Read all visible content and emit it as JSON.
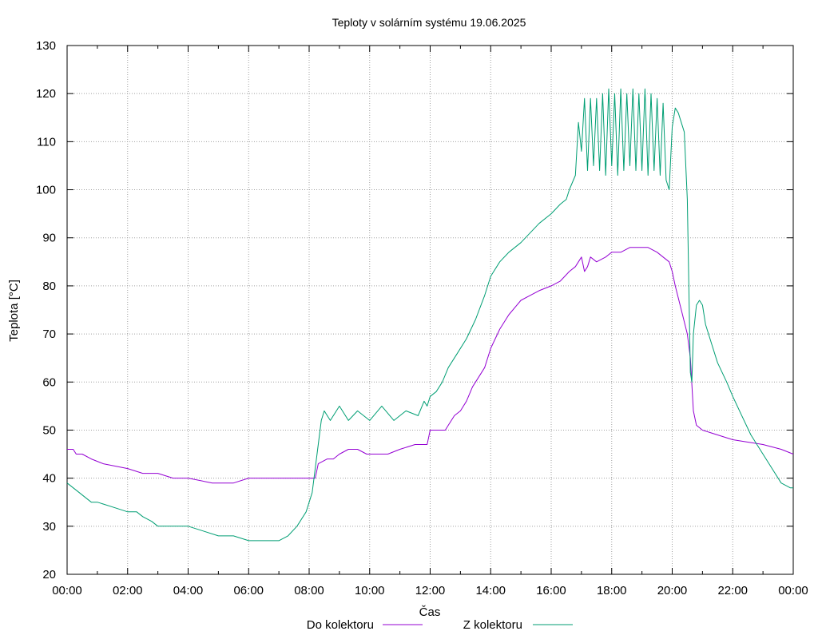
{
  "chart_data": {
    "type": "line",
    "title": "Teploty v solárním systému 19.06.2025",
    "xlabel": "Čas",
    "ylabel": "Teplota [°C]",
    "ylim": [
      20,
      130
    ],
    "xlim_hours": [
      0,
      24
    ],
    "grid": true,
    "legend_position": "bottom",
    "x_ticks": [
      "00:00",
      "02:00",
      "04:00",
      "06:00",
      "08:00",
      "10:00",
      "12:00",
      "14:00",
      "16:00",
      "18:00",
      "20:00",
      "22:00",
      "00:00"
    ],
    "y_ticks": [
      20,
      30,
      40,
      50,
      60,
      70,
      80,
      90,
      100,
      110,
      120,
      130
    ],
    "series": [
      {
        "name": "Do kolektoru",
        "color": "#9400d3",
        "x": [
          0,
          0.2,
          0.3,
          0.5,
          0.8,
          1.2,
          2.0,
          2.5,
          3.0,
          3.5,
          4.0,
          4.8,
          5.0,
          5.5,
          6.0,
          7.0,
          8.0,
          8.2,
          8.3,
          8.6,
          8.8,
          9.0,
          9.3,
          9.6,
          9.9,
          10.2,
          10.6,
          11.0,
          11.5,
          11.9,
          12.0,
          12.4,
          12.5,
          12.6,
          12.8,
          13.0,
          13.2,
          13.4,
          13.6,
          13.8,
          14.0,
          14.3,
          14.6,
          15.0,
          15.3,
          15.6,
          16.0,
          16.3,
          16.6,
          16.8,
          16.9,
          17.0,
          17.1,
          17.2,
          17.3,
          17.5,
          17.8,
          18.0,
          18.3,
          18.6,
          18.9,
          19.2,
          19.5,
          19.7,
          19.9,
          20.0,
          20.1,
          20.3,
          20.5,
          20.6,
          20.7,
          20.8,
          21.0,
          21.5,
          22.0,
          23.0,
          23.6,
          24.0
        ],
        "values": [
          46,
          46,
          45,
          45,
          44,
          43,
          42,
          41,
          41,
          40,
          40,
          39,
          39,
          39,
          40,
          40,
          40,
          40,
          43,
          44,
          44,
          45,
          46,
          46,
          45,
          45,
          45,
          46,
          47,
          47,
          50,
          50,
          50,
          51,
          53,
          54,
          56,
          59,
          61,
          63,
          67,
          71,
          74,
          77,
          78,
          79,
          80,
          81,
          83,
          84,
          85,
          86,
          83,
          84,
          86,
          85,
          86,
          87,
          87,
          88,
          88,
          88,
          87,
          86,
          85,
          83,
          80,
          75,
          70,
          65,
          54,
          51,
          50,
          49,
          48,
          47,
          46,
          45
        ]
      },
      {
        "name": "Z kolektoru",
        "color": "#009e73",
        "x": [
          0,
          0.2,
          0.4,
          0.6,
          0.8,
          1.0,
          1.5,
          2.0,
          2.3,
          2.5,
          2.8,
          3.0,
          3.5,
          4.0,
          4.5,
          5.0,
          5.5,
          6.0,
          6.2,
          6.5,
          7.0,
          7.3,
          7.6,
          7.9,
          8.1,
          8.2,
          8.3,
          8.4,
          8.5,
          8.7,
          9.0,
          9.3,
          9.6,
          10.0,
          10.4,
          10.8,
          11.2,
          11.6,
          11.8,
          11.9,
          12.0,
          12.2,
          12.4,
          12.6,
          12.9,
          13.2,
          13.5,
          13.8,
          14.0,
          14.3,
          14.6,
          15.0,
          15.3,
          15.6,
          16.0,
          16.3,
          16.5,
          16.6,
          16.8,
          16.9,
          17.0,
          17.1,
          17.2,
          17.3,
          17.4,
          17.5,
          17.6,
          17.7,
          17.8,
          17.9,
          18.0,
          18.1,
          18.2,
          18.3,
          18.4,
          18.5,
          18.6,
          18.7,
          18.8,
          18.9,
          19.0,
          19.1,
          19.2,
          19.3,
          19.4,
          19.5,
          19.6,
          19.7,
          19.8,
          19.9,
          20.0,
          20.1,
          20.2,
          20.4,
          20.5,
          20.55,
          20.6,
          20.65,
          20.7,
          20.8,
          20.9,
          21.0,
          21.1,
          21.3,
          21.5,
          21.8,
          22.0,
          22.3,
          22.6,
          23.0,
          23.3,
          23.6,
          23.9,
          24.0
        ],
        "values": [
          39,
          38,
          37,
          36,
          35,
          35,
          34,
          33,
          33,
          32,
          31,
          30,
          30,
          30,
          29,
          28,
          28,
          27,
          27,
          27,
          27,
          28,
          30,
          33,
          37,
          42,
          47,
          52,
          54,
          52,
          55,
          52,
          54,
          52,
          55,
          52,
          54,
          53,
          56,
          55,
          57,
          58,
          60,
          63,
          66,
          69,
          73,
          78,
          82,
          85,
          87,
          89,
          91,
          93,
          95,
          97,
          98,
          100,
          103,
          114,
          108,
          119,
          104,
          119,
          105,
          119,
          104,
          120,
          103,
          121,
          105,
          120,
          103,
          121,
          104,
          120,
          105,
          121,
          104,
          120,
          104,
          121,
          103,
          120,
          104,
          119,
          103,
          118,
          102,
          100,
          113,
          117,
          116,
          112,
          98,
          80,
          62,
          60,
          70,
          76,
          77,
          76,
          72,
          68,
          64,
          60,
          57,
          53,
          49,
          45,
          42,
          39,
          38,
          38
        ]
      }
    ]
  }
}
